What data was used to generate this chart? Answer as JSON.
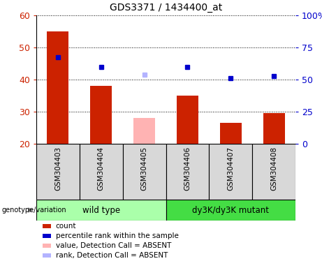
{
  "title": "GDS3371 / 1434400_at",
  "samples": [
    "GSM304403",
    "GSM304404",
    "GSM304405",
    "GSM304406",
    "GSM304407",
    "GSM304408"
  ],
  "bar_values": [
    55,
    38,
    28,
    35,
    26.5,
    29.5
  ],
  "bar_colors": [
    "#cc2200",
    "#cc2200",
    "#ffb3b3",
    "#cc2200",
    "#cc2200",
    "#cc2200"
  ],
  "dot_values": [
    47,
    44,
    41.5,
    44,
    40.5,
    41
  ],
  "dot_colors": [
    "#0000cc",
    "#0000cc",
    "#b3b3ff",
    "#0000cc",
    "#0000cc",
    "#0000cc"
  ],
  "ylim_left": [
    20,
    60
  ],
  "ylim_right": [
    0,
    100
  ],
  "yticks_left": [
    20,
    30,
    40,
    50,
    60
  ],
  "yticks_right": [
    0,
    25,
    50,
    75,
    100
  ],
  "ytick_labels_right": [
    "0",
    "25",
    "50",
    "75",
    "100%"
  ],
  "group1_label": "wild type",
  "group2_label": "dy3K/dy3K mutant",
  "group1_indices": [
    0,
    1,
    2
  ],
  "group2_indices": [
    3,
    4,
    5
  ],
  "group1_color": "#aaffaa",
  "group2_color": "#44dd44",
  "left_tick_color": "#cc2200",
  "right_tick_color": "#0000cc",
  "bar_width": 0.5,
  "legend_items": [
    {
      "label": "count",
      "color": "#cc2200"
    },
    {
      "label": "percentile rank within the sample",
      "color": "#0000cc"
    },
    {
      "label": "value, Detection Call = ABSENT",
      "color": "#ffb3b3"
    },
    {
      "label": "rank, Detection Call = ABSENT",
      "color": "#b3b3ff"
    }
  ]
}
